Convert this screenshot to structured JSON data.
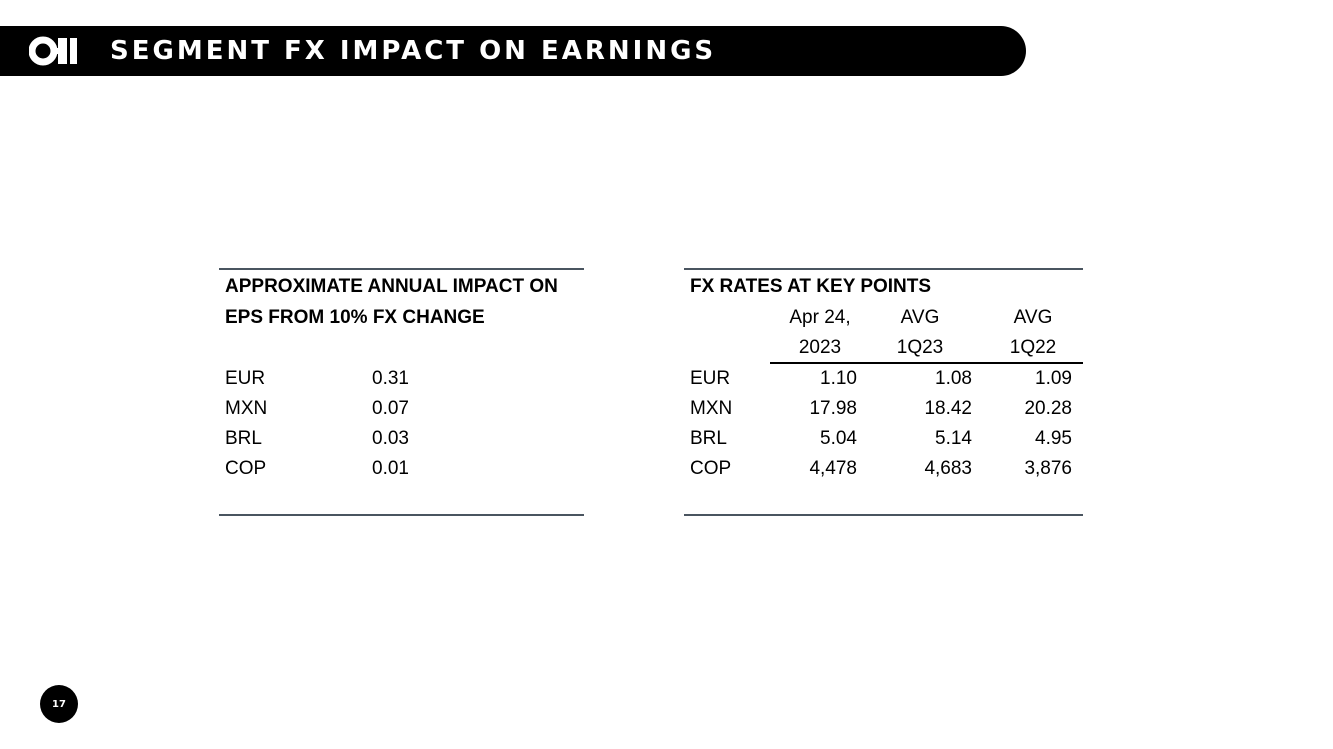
{
  "header": {
    "title": "SEGMENT FX IMPACT ON EARNINGS"
  },
  "eps_table": {
    "title_line1": "APPROXIMATE ANNUAL IMPACT ON",
    "title_line2": "EPS FROM 10% FX CHANGE",
    "rows": [
      {
        "currency": "EUR",
        "impact": "0.31"
      },
      {
        "currency": "MXN",
        "impact": "0.07"
      },
      {
        "currency": "BRL",
        "impact": "0.03"
      },
      {
        "currency": "COP",
        "impact": "0.01"
      }
    ]
  },
  "fx_table": {
    "title": "FX RATES AT KEY POINTS",
    "columns": [
      {
        "line1": "Apr 24,",
        "line2": "2023"
      },
      {
        "line1": "AVG",
        "line2": "1Q23"
      },
      {
        "line1": "AVG",
        "line2": "1Q22"
      }
    ],
    "rows": [
      {
        "currency": "EUR",
        "values": [
          "1.10",
          "1.08",
          "1.09"
        ]
      },
      {
        "currency": "MXN",
        "values": [
          "17.98",
          "18.42",
          "20.28"
        ]
      },
      {
        "currency": "BRL",
        "values": [
          "5.04",
          "5.14",
          "4.95"
        ]
      },
      {
        "currency": "COP",
        "values": [
          "4,478",
          "4,683",
          "3,876"
        ]
      }
    ]
  },
  "footer": {
    "page_number": "17"
  }
}
